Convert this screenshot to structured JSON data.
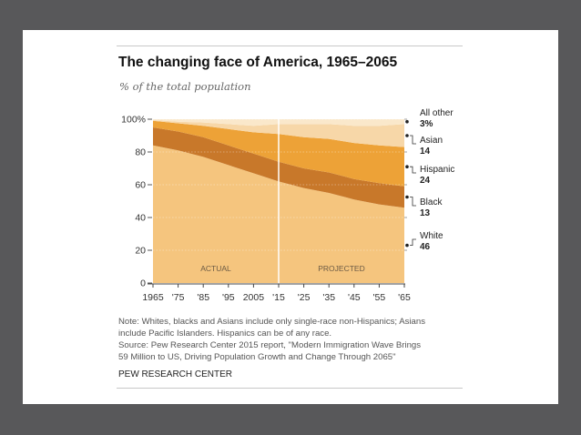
{
  "chart_data": {
    "type": "area",
    "stacked": true,
    "title": "The changing face of America, 1965–2065",
    "subtitle": "% of the total population",
    "xlabel": "",
    "ylabel": "",
    "x": [
      1965,
      1975,
      1985,
      1995,
      2005,
      2015,
      2025,
      2035,
      2045,
      2055,
      2065
    ],
    "x_tick_labels": [
      "1965",
      "'75",
      "'85",
      "'95",
      "2005",
      "'15",
      "'25",
      "'35",
      "'45",
      "'55",
      "'65"
    ],
    "y_tick_labels": [
      "0",
      "20",
      "40",
      "60",
      "80",
      "100%"
    ],
    "y_ticks": [
      0,
      20,
      40,
      60,
      80,
      100
    ],
    "ylim": [
      0,
      100
    ],
    "xlim": [
      1965,
      2065
    ],
    "series": [
      {
        "name": "White",
        "color": "#f5c57e",
        "values": [
          84,
          81,
          77,
          72,
          67,
          62,
          58,
          55,
          51,
          48,
          46
        ]
      },
      {
        "name": "Black",
        "color": "#c8782a",
        "values": [
          11,
          11.5,
          12,
          12,
          12,
          12,
          12,
          12.5,
          12.5,
          13,
          13
        ]
      },
      {
        "name": "Hispanic",
        "color": "#eda237",
        "values": [
          4,
          5,
          7,
          10,
          13,
          17,
          19,
          20.5,
          22,
          23,
          24
        ]
      },
      {
        "name": "Asian",
        "color": "#f7d7a8",
        "values": [
          0.5,
          1,
          2,
          3,
          4,
          6,
          8,
          9,
          10.5,
          12,
          14
        ]
      },
      {
        "name": "All other",
        "color": "#fae8cb",
        "values": [
          0.5,
          1.5,
          2,
          3,
          4,
          3,
          3,
          3,
          4,
          4,
          3
        ]
      }
    ],
    "end_labels": [
      {
        "name": "All other",
        "value": "3%"
      },
      {
        "name": "Asian",
        "value": "14"
      },
      {
        "name": "Hispanic",
        "value": "24"
      },
      {
        "name": "Black",
        "value": "13"
      },
      {
        "name": "White",
        "value": "46"
      }
    ],
    "divider_x": 2015,
    "region_labels": [
      {
        "text": "ACTUAL",
        "x": 1990
      },
      {
        "text": "PROJECTED",
        "x": 2040
      }
    ],
    "grid": true
  },
  "footer": {
    "note_line1": "Note: Whites, blacks and Asians include only single-race non-Hispanics; Asians",
    "note_line2": "include Pacific Islanders. Hispanics can be of any race.",
    "source_line1": "Source:  Pew Research Center 2015 report, \"Modern Immigration Wave Brings",
    "source_line2": "59 Million to US, Driving Population Growth and Change Through 2065\"",
    "org": "PEW RESEARCH CENTER"
  }
}
